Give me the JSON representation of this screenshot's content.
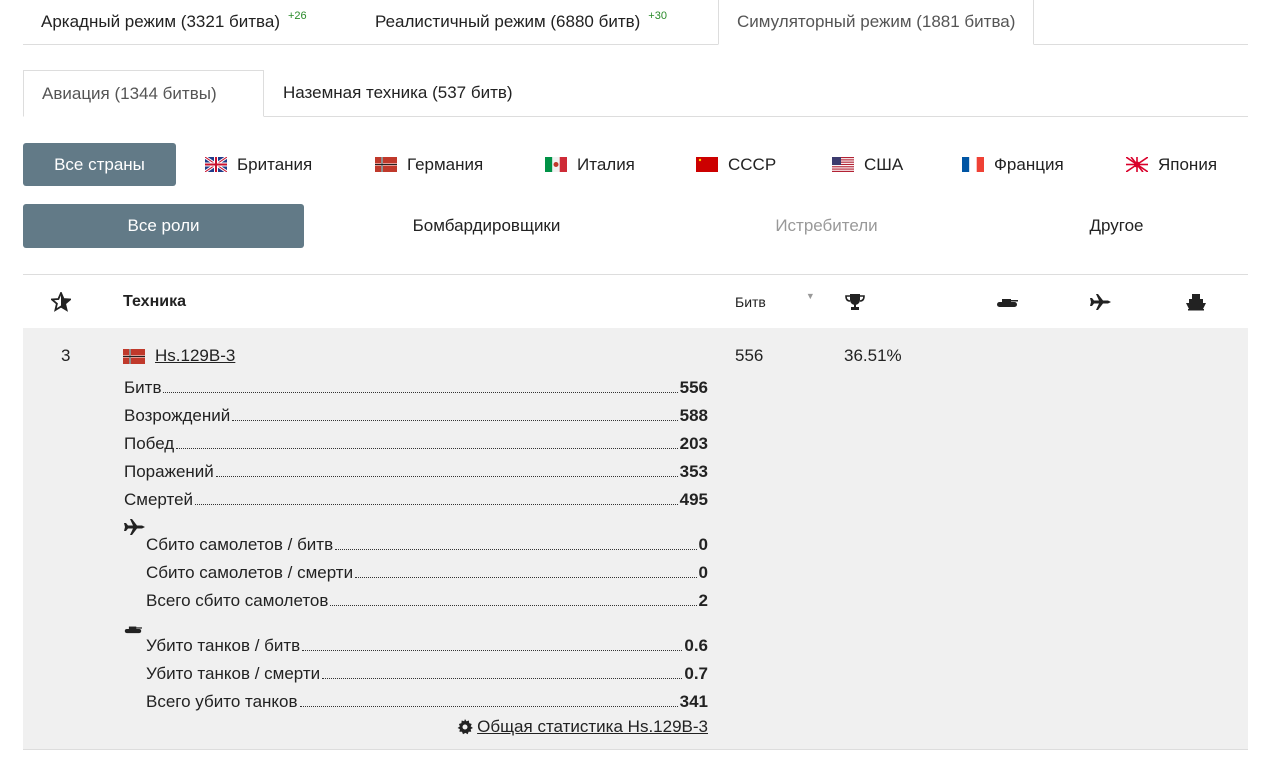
{
  "mode_tabs": [
    {
      "label": "Аркадный режим (3321 битва)",
      "delta": "+26"
    },
    {
      "label": "Реалистичный режим (6880 битв)",
      "delta": "+30"
    },
    {
      "label": "Симуляторный режим (1881 битва)",
      "delta": ""
    }
  ],
  "type_tabs": [
    {
      "label": "Авиация (1344 битвы)"
    },
    {
      "label": "Наземная техника (537 битв)"
    }
  ],
  "countries": [
    {
      "label": "Все страны"
    },
    {
      "label": "Британия",
      "icon": "uk-flag-icon"
    },
    {
      "label": "Германия",
      "icon": "germany-flag-icon"
    },
    {
      "label": "Италия",
      "icon": "italy-flag-icon"
    },
    {
      "label": "СССР",
      "icon": "ussr-flag-icon"
    },
    {
      "label": "США",
      "icon": "usa-flag-icon"
    },
    {
      "label": "Франция",
      "icon": "france-flag-icon"
    },
    {
      "label": "Япония",
      "icon": "japan-flag-icon"
    }
  ],
  "roles": [
    {
      "label": "Все роли"
    },
    {
      "label": "Бомбардировщики"
    },
    {
      "label": "Истребители"
    },
    {
      "label": "Другое"
    }
  ],
  "table": {
    "headers": {
      "rank_icon": "star-icon",
      "vehicle": "Техника",
      "battles": "Битв",
      "winrate_icon": "trophy-icon",
      "ground_icon": "tank-icon",
      "air_icon": "plane-icon",
      "naval_icon": "ship-icon"
    },
    "row": {
      "rank": "3",
      "name": "Hs.129B-3",
      "battles": "556",
      "winrate": "36.51%",
      "stats": [
        {
          "label": "Битв",
          "value": "556"
        },
        {
          "label": "Возрождений",
          "value": "588"
        },
        {
          "label": "Побед",
          "value": "203"
        },
        {
          "label": "Поражений",
          "value": "353"
        },
        {
          "label": "Смертей",
          "value": "495"
        }
      ],
      "air_stats": [
        {
          "label": "Сбито самолетов / битв",
          "value": "0"
        },
        {
          "label": "Сбито самолетов / смерти",
          "value": "0"
        },
        {
          "label": "Всего сбито самолетов",
          "value": "2"
        }
      ],
      "ground_stats": [
        {
          "label": "Убито танков / битв",
          "value": "0.6"
        },
        {
          "label": "Убито танков / смерти",
          "value": "0.7"
        },
        {
          "label": "Всего убито танков",
          "value": "341"
        }
      ],
      "overall_link": "Общая статистика Hs.129B-3"
    }
  },
  "colors": {
    "accent": "#627a87",
    "delta": "#2a8a2a",
    "row_bg": "#f0f0f0"
  }
}
